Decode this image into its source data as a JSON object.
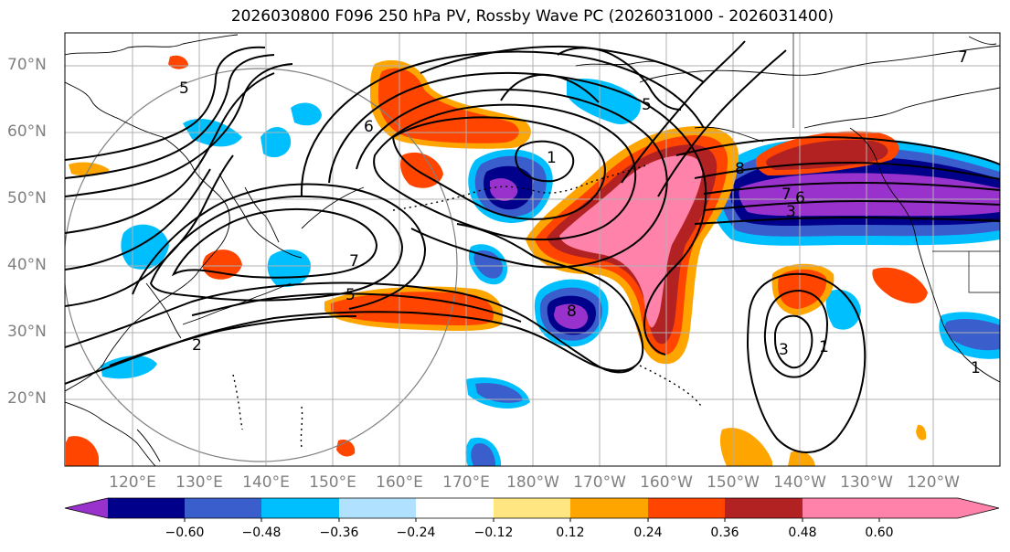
{
  "title": "2026030800 F096 250 hPa PV, Rossby Wave PC (2026031000 - 2026031400)",
  "latitude_labels": [
    "70°N",
    "60°N",
    "50°N",
    "40°N",
    "30°N",
    "20°N"
  ],
  "longitude_labels": [
    "120°E",
    "130°E",
    "140°E",
    "150°E",
    "160°E",
    "170°E",
    "180°W",
    "170°W",
    "160°W",
    "150°W",
    "140°W",
    "130°W",
    "120°W"
  ],
  "colorbar": {
    "tick_labels": [
      "−0.60",
      "−0.48",
      "−0.36",
      "−0.24",
      "−0.12",
      "0.12",
      "0.24",
      "0.36",
      "0.48",
      "0.60"
    ],
    "colors": [
      "#9932cc",
      "#00008b",
      "#3a5fcd",
      "#00bfff",
      "#b0e2ff",
      "#ffffff",
      "#ffe680",
      "#ffa500",
      "#ff4500",
      "#b22222",
      "#ff82ab"
    ]
  },
  "contour_labels": [
    "5",
    "7",
    "5",
    "6",
    "1",
    "2",
    "7",
    "5",
    "8",
    "6",
    "3",
    "3",
    "1",
    "1",
    "8",
    "7"
  ]
}
